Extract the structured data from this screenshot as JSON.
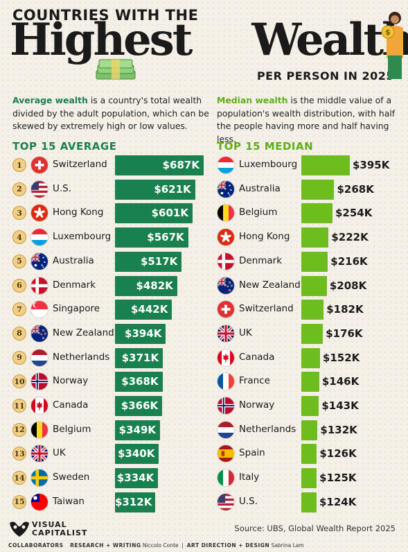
{
  "header": {
    "kicker": "COUNTRIES WITH THE",
    "headline_1": "Highest",
    "headline_2": "Wealth",
    "subtitle": "PER PERSON IN 2025"
  },
  "definitions": {
    "average_term": "Average wealth",
    "average_text": " is a country's total wealth divided by the adult population, which can be skewed by extremely high or low values.",
    "median_term": "Median wealth",
    "median_text": " is the middle value of a population's wealth distribution, with half the people having more and half having less."
  },
  "chart_data": [
    {
      "type": "bar",
      "title": "TOP 15 AVERAGE",
      "unit": "USD thousands",
      "ranks": [
        "1",
        "2",
        "3",
        "4",
        "5",
        "6",
        "7",
        "8",
        "9",
        "10",
        "11",
        "12",
        "13",
        "14",
        "15"
      ],
      "categories": [
        "Switzerland",
        "U.S.",
        "Hong Kong",
        "Luxembourg",
        "Australia",
        "Denmark",
        "Singapore",
        "New Zealand",
        "Netherlands",
        "Norway",
        "Canada",
        "Belgium",
        "UK",
        "Sweden",
        "Taiwan"
      ],
      "values": [
        687,
        621,
        601,
        567,
        517,
        482,
        442,
        394,
        371,
        368,
        366,
        349,
        340,
        334,
        312
      ],
      "labels": [
        "$687K",
        "$621K",
        "$601K",
        "$567K",
        "$517K",
        "$482K",
        "$442K",
        "$394K",
        "$371K",
        "$368K",
        "$366K",
        "$349K",
        "$340K",
        "$334K",
        "$312K"
      ],
      "color": "#19814f"
    },
    {
      "type": "bar",
      "title": "TOP 15 MEDIAN",
      "unit": "USD thousands",
      "categories": [
        "Luxembourg",
        "Australia",
        "Belgium",
        "Hong Kong",
        "Denmark",
        "New Zealand",
        "Switzerland",
        "UK",
        "Canada",
        "France",
        "Norway",
        "Netherlands",
        "Spain",
        "Italy",
        "U.S."
      ],
      "values": [
        395,
        268,
        254,
        222,
        216,
        208,
        182,
        176,
        152,
        146,
        143,
        132,
        126,
        125,
        124
      ],
      "labels": [
        "$395K",
        "$268K",
        "$254K",
        "$222K",
        "$216K",
        "$208K",
        "$182K",
        "$176K",
        "$152K",
        "$146K",
        "$143K",
        "$132K",
        "$126K",
        "$125K",
        "$124K"
      ],
      "color": "#6ebd1e"
    }
  ],
  "footer": {
    "brand_line1": "VISUAL",
    "brand_line2": "CAPITALIST",
    "source": "Source: UBS, Global Wealth Report 2025",
    "collab_label": "COLLABORATORS",
    "research_label": "RESEARCH + WRITING",
    "research_name": "Niccolo Conte",
    "art_label": "ART DIRECTION + DESIGN",
    "art_name": "Sabrina Lam"
  }
}
